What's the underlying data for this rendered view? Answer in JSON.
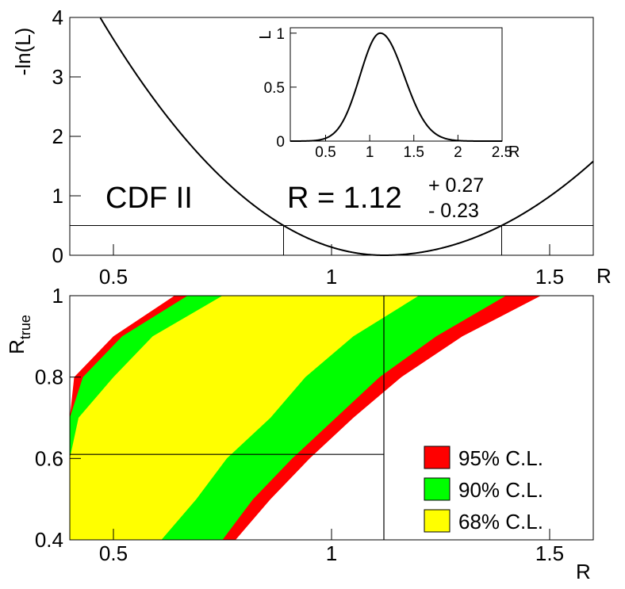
{
  "chart_data": [
    {
      "type": "line",
      "title": "",
      "label": "CDF II",
      "result": {
        "text": "R = 1.12",
        "plus": "+ 0.27",
        "minus": "- 0.23",
        "value": 1.12,
        "err_up": 0.27,
        "err_down": 0.23
      },
      "xlabel": "R",
      "ylabel": "-ln(L)",
      "xlim": [
        0.4,
        1.6
      ],
      "ylim": [
        0,
        4
      ],
      "x_ticks": [
        "0.5",
        "1",
        "1.5"
      ],
      "y_ticks": [
        "0",
        "1",
        "2",
        "3",
        "4"
      ],
      "series": [
        {
          "name": "-ln(L)",
          "shape": "parabola",
          "minimum_at": 1.12,
          "minimum_value": 0
        }
      ],
      "reference_line": {
        "y": 0.5,
        "x_low": 0.89,
        "x_high": 1.39
      },
      "inset": {
        "type": "line",
        "xlabel": "R",
        "ylabel": "L",
        "xlim": [
          0.1,
          2.5
        ],
        "ylim": [
          0,
          1.05
        ],
        "x_ticks": [
          "0.5",
          "1",
          "1.5",
          "2",
          "2.5"
        ],
        "y_ticks": [
          "0",
          "0.5",
          "1"
        ],
        "peak_at": 1.12,
        "peak_value": 1.0
      }
    },
    {
      "type": "area",
      "title": "",
      "xlabel": "R",
      "ylabel": "R",
      "ylabel_subscript": "true",
      "xlim": [
        0.4,
        1.6
      ],
      "ylim": [
        0.4,
        1.0
      ],
      "x_ticks": [
        "0.5",
        "1",
        "1.5"
      ],
      "y_ticks": [
        "0.4",
        "0.6",
        "0.8",
        "1"
      ],
      "measured_R": 1.12,
      "derived_R_true": 0.61,
      "legend": [
        {
          "label": "95% C.L.",
          "color": "#ff0000"
        },
        {
          "label": "90% C.L.",
          "color": "#00ff00"
        },
        {
          "label": "68% C.L.",
          "color": "#ffff00"
        }
      ],
      "bands": {
        "levels": [
          "95",
          "90",
          "68"
        ],
        "R_true": [
          0.4,
          0.5,
          0.6,
          0.7,
          0.8,
          0.9,
          1.0
        ],
        "lower_95": [
          0.78,
          0.86,
          0.95,
          1.05,
          1.16,
          1.3,
          1.48
        ],
        "lower_90": [
          0.75,
          0.82,
          0.91,
          1.01,
          1.11,
          1.24,
          1.4
        ],
        "lower_68": [
          0.61,
          0.69,
          0.76,
          0.86,
          0.94,
          1.05,
          1.2
        ],
        "upper_68": [
          0.4,
          0.4,
          0.4,
          0.42,
          0.5,
          0.59,
          0.75
        ],
        "upper_90": [
          0.4,
          0.4,
          0.4,
          0.4,
          0.43,
          0.52,
          0.67
        ],
        "upper_95": [
          0.4,
          0.4,
          0.4,
          0.4,
          0.41,
          0.5,
          0.64
        ]
      }
    }
  ]
}
